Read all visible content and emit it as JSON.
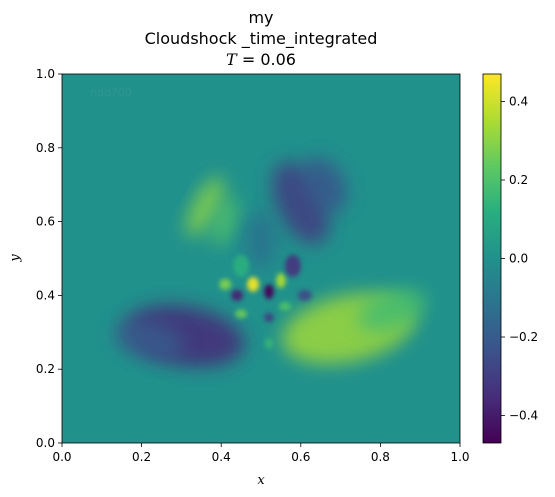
{
  "chart_data": {
    "type": "heatmap",
    "title_lines": [
      "my",
      "Cloudshock _time_integrated"
    ],
    "time_label": {
      "symbol": "T",
      "relation": "=",
      "value": "0.06"
    },
    "xlabel": "x",
    "ylabel": "y",
    "xlim": [
      0.0,
      1.0
    ],
    "ylim": [
      0.0,
      1.0
    ],
    "xticks": [
      "0.0",
      "0.2",
      "0.4",
      "0.6",
      "0.8",
      "1.0"
    ],
    "yticks": [
      "0.0",
      "0.2",
      "0.4",
      "0.6",
      "0.8",
      "1.0"
    ],
    "xtick_values": [
      0.0,
      0.2,
      0.4,
      0.6,
      0.8,
      1.0
    ],
    "ytick_values": [
      0.0,
      0.2,
      0.4,
      0.6,
      0.8,
      1.0
    ],
    "watermark": "ndd700",
    "colormap": "viridis",
    "colorbar": {
      "vmin": -0.47,
      "vmax": 0.47,
      "ticks": [
        "−0.4",
        "−0.2",
        "0.0",
        "0.2",
        "0.4"
      ],
      "tick_values": [
        -0.4,
        -0.2,
        0.0,
        0.2,
        0.4
      ]
    },
    "background_value": 0.0,
    "features": [
      {
        "kind": "blob",
        "cx": 0.31,
        "cy": 0.29,
        "rx": 0.15,
        "ry": 0.08,
        "rot": -10,
        "value": -0.36
      },
      {
        "kind": "blob",
        "cx": 0.22,
        "cy": 0.28,
        "rx": 0.09,
        "ry": 0.05,
        "rot": -15,
        "value": -0.2
      },
      {
        "kind": "blob",
        "cx": 0.72,
        "cy": 0.31,
        "rx": 0.17,
        "ry": 0.09,
        "rot": 12,
        "value": 0.33
      },
      {
        "kind": "blob",
        "cx": 0.83,
        "cy": 0.36,
        "rx": 0.09,
        "ry": 0.05,
        "rot": 20,
        "value": 0.18
      },
      {
        "kind": "blob",
        "cx": 0.36,
        "cy": 0.64,
        "rx": 0.03,
        "ry": 0.09,
        "rot": -28,
        "value": 0.3
      },
      {
        "kind": "blob",
        "cx": 0.41,
        "cy": 0.6,
        "rx": 0.025,
        "ry": 0.07,
        "rot": -20,
        "value": 0.22
      },
      {
        "kind": "blob",
        "cx": 0.6,
        "cy": 0.65,
        "rx": 0.06,
        "ry": 0.12,
        "rot": 25,
        "value": -0.3
      },
      {
        "kind": "blob",
        "cx": 0.66,
        "cy": 0.7,
        "rx": 0.05,
        "ry": 0.08,
        "rot": 30,
        "value": -0.22
      },
      {
        "kind": "blob",
        "cx": 0.5,
        "cy": 0.55,
        "rx": 0.04,
        "ry": 0.08,
        "rot": 0,
        "value": -0.12
      },
      {
        "kind": "blob",
        "cx": 0.48,
        "cy": 0.43,
        "rx": 0.015,
        "ry": 0.02,
        "rot": 0,
        "value": 0.45
      },
      {
        "kind": "blob",
        "cx": 0.52,
        "cy": 0.41,
        "rx": 0.012,
        "ry": 0.02,
        "rot": 0,
        "value": -0.46
      },
      {
        "kind": "blob",
        "cx": 0.55,
        "cy": 0.44,
        "rx": 0.012,
        "ry": 0.02,
        "rot": 0,
        "value": 0.35
      },
      {
        "kind": "blob",
        "cx": 0.44,
        "cy": 0.4,
        "rx": 0.015,
        "ry": 0.015,
        "rot": 0,
        "value": -0.38
      },
      {
        "kind": "blob",
        "cx": 0.45,
        "cy": 0.35,
        "rx": 0.015,
        "ry": 0.012,
        "rot": 0,
        "value": 0.25
      },
      {
        "kind": "blob",
        "cx": 0.52,
        "cy": 0.34,
        "rx": 0.012,
        "ry": 0.012,
        "rot": 0,
        "value": -0.3
      },
      {
        "kind": "blob",
        "cx": 0.56,
        "cy": 0.37,
        "rx": 0.015,
        "ry": 0.012,
        "rot": 0,
        "value": 0.2
      },
      {
        "kind": "blob",
        "cx": 0.52,
        "cy": 0.27,
        "rx": 0.01,
        "ry": 0.015,
        "rot": 0,
        "value": 0.15
      },
      {
        "kind": "blob",
        "cx": 0.61,
        "cy": 0.4,
        "rx": 0.018,
        "ry": 0.015,
        "rot": 0,
        "value": -0.25
      },
      {
        "kind": "blob",
        "cx": 0.41,
        "cy": 0.43,
        "rx": 0.015,
        "ry": 0.015,
        "rot": 0,
        "value": 0.28
      },
      {
        "kind": "blob",
        "cx": 0.58,
        "cy": 0.48,
        "rx": 0.02,
        "ry": 0.03,
        "rot": 0,
        "value": -0.32
      },
      {
        "kind": "blob",
        "cx": 0.45,
        "cy": 0.48,
        "rx": 0.02,
        "ry": 0.03,
        "rot": 0,
        "value": 0.12
      }
    ]
  }
}
